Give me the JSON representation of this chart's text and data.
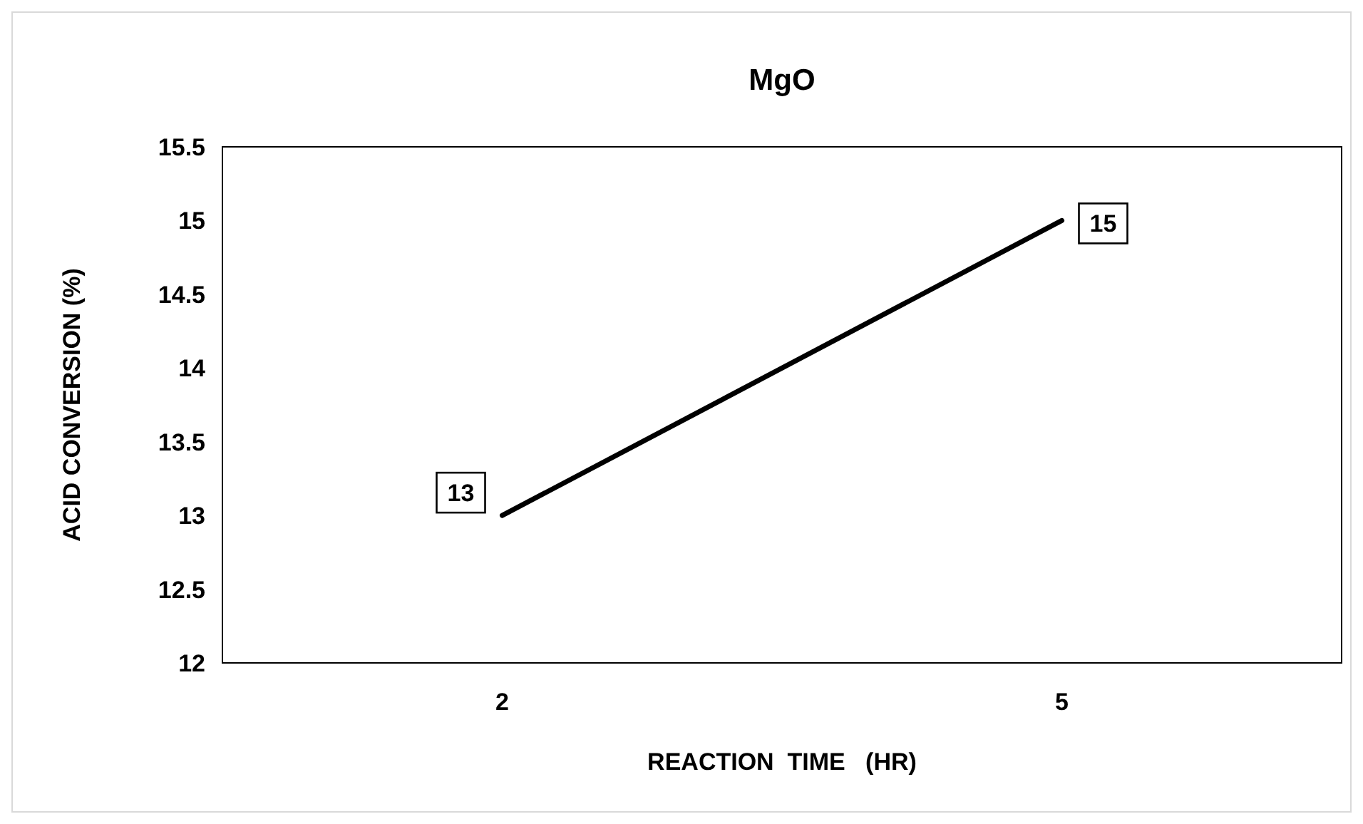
{
  "chart_data": {
    "type": "line",
    "title": "MgO",
    "xlabel": "REACTION  TIME   (HR)",
    "ylabel": "ACID CONVERSION (%)",
    "categories": [
      "2",
      "5"
    ],
    "series": [
      {
        "color": "#000000",
        "values": [
          13,
          15
        ]
      }
    ],
    "ylim": [
      12,
      15.5
    ],
    "yticks": [
      12,
      12.5,
      13,
      13.5,
      14,
      14.5,
      15,
      15.5
    ],
    "data_labels": true,
    "marker": "none"
  }
}
